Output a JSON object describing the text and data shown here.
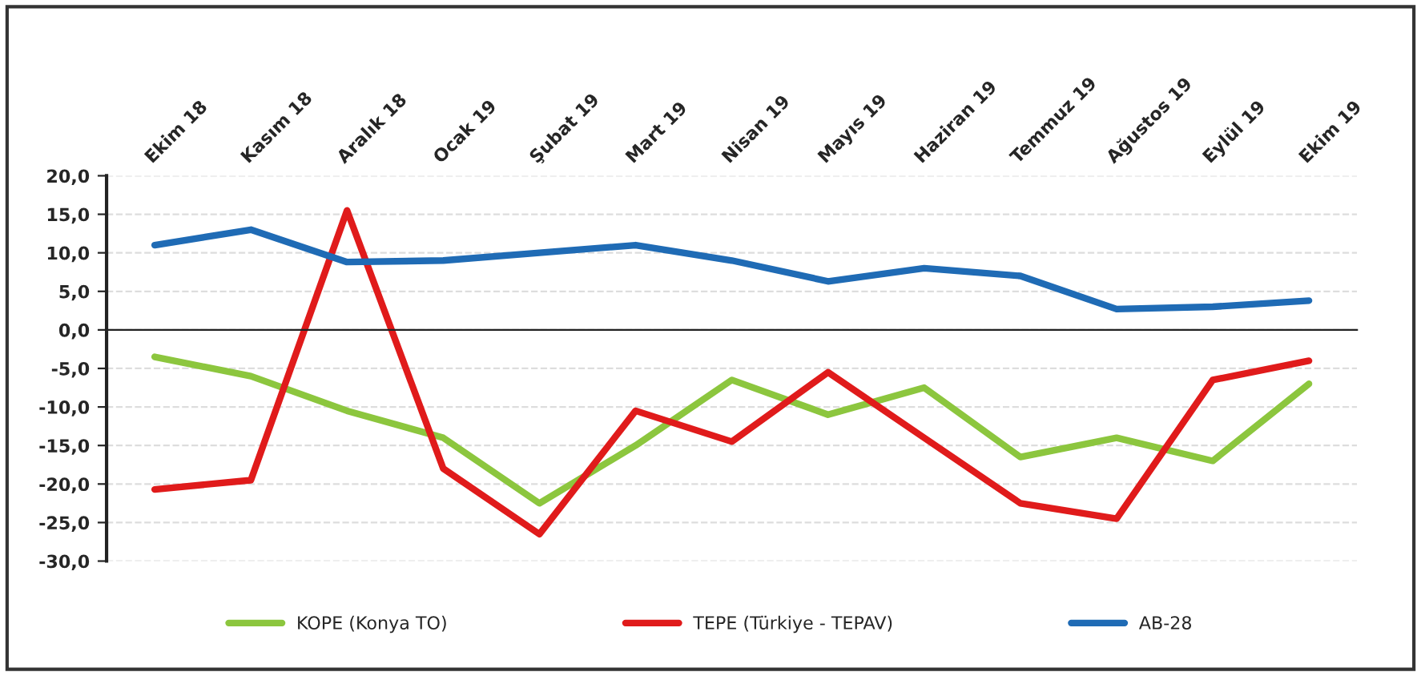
{
  "chart_data": {
    "type": "line",
    "categories": [
      "Ekim 18",
      "Kasım 18",
      "Aralık 18",
      "Ocak 19",
      "Şubat 19",
      "Mart 19",
      "Nisan 19",
      "Mayıs 19",
      "Haziran 19",
      "Temmuz 19",
      "Ağustos 19",
      "Eylül 19",
      "Ekim 19"
    ],
    "series": [
      {
        "name": "KOPE (Konya TO)",
        "color": "#8cc63e",
        "values": [
          -3.5,
          -6,
          -10.5,
          -14,
          -22.5,
          -15,
          -6.5,
          -11,
          -7.5,
          -16.5,
          -14,
          -17,
          -7
        ]
      },
      {
        "name": "TEPE (Türkiye - TEPAV)",
        "color": "#e01b1b",
        "values": [
          -20.7,
          -19.5,
          15.5,
          -18,
          -26.5,
          -10.5,
          -14.5,
          -5.5,
          -14,
          -22.5,
          -24.5,
          -6.5,
          -4
        ]
      },
      {
        "name": "AB-28",
        "color": "#1f6bb5",
        "values": [
          11,
          13,
          8.8,
          9,
          10,
          11,
          9,
          6.3,
          8,
          7,
          2.7,
          3,
          3.8
        ]
      }
    ],
    "ylim": [
      -30,
      20
    ],
    "yticks": [
      {
        "value": -30,
        "label": "-30,0"
      },
      {
        "value": -25,
        "label": "-25,0"
      },
      {
        "value": -20,
        "label": "-20,0"
      },
      {
        "value": -15,
        "label": "-15,0"
      },
      {
        "value": -10,
        "label": "-10,0"
      },
      {
        "value": -5,
        "label": "-5,0"
      },
      {
        "value": 0,
        "label": "0,0"
      },
      {
        "value": 5,
        "label": "5,0"
      },
      {
        "value": 10,
        "label": "10,0"
      },
      {
        "value": 15,
        "label": "15,0"
      },
      {
        "value": 20,
        "label": "20,0"
      }
    ],
    "grid": "y",
    "legend": "bottom",
    "marker": "none",
    "line_style": "solid"
  }
}
